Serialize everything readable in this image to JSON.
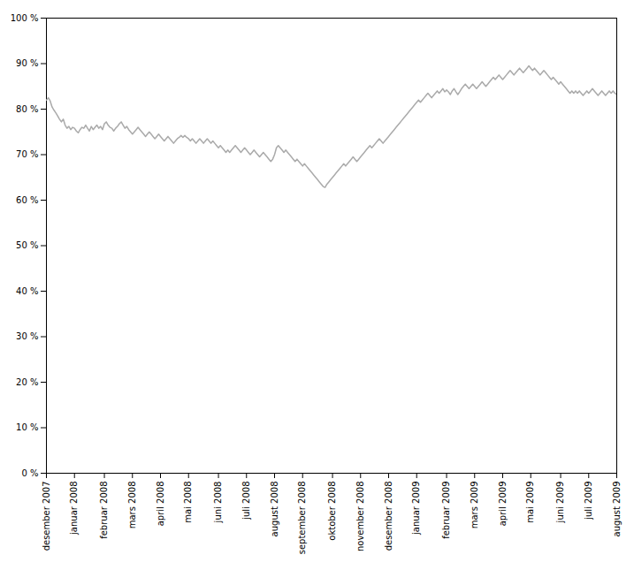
{
  "chart_data": {
    "type": "line",
    "color": "#aaaaaa",
    "grid": false,
    "ylim": [
      0,
      100
    ],
    "yticks": [
      {
        "value": 0,
        "label": "0 %"
      },
      {
        "value": 10,
        "label": "10 %"
      },
      {
        "value": 20,
        "label": "20 %"
      },
      {
        "value": 30,
        "label": "30 %"
      },
      {
        "value": 40,
        "label": "40 %"
      },
      {
        "value": 50,
        "label": "50 %"
      },
      {
        "value": 60,
        "label": "60 %"
      },
      {
        "value": 70,
        "label": "70 %"
      },
      {
        "value": 80,
        "label": "80 %"
      },
      {
        "value": 90,
        "label": "90 %"
      },
      {
        "value": 100,
        "label": "100 %"
      }
    ],
    "categories": [
      "desember 2007",
      null,
      null,
      null,
      null,
      null,
      null,
      null,
      null,
      null,
      null,
      null,
      null,
      null,
      null,
      "januar 2008",
      null,
      null,
      null,
      null,
      null,
      null,
      null,
      null,
      null,
      null,
      null,
      null,
      null,
      null,
      null,
      "februar 2008",
      null,
      null,
      null,
      null,
      null,
      null,
      null,
      null,
      null,
      null,
      null,
      null,
      null,
      null,
      "mars 2008",
      null,
      null,
      null,
      null,
      null,
      null,
      null,
      null,
      null,
      null,
      null,
      null,
      null,
      null,
      "april 2008",
      null,
      null,
      null,
      null,
      null,
      null,
      null,
      null,
      null,
      null,
      null,
      null,
      null,
      null,
      "mai 2008",
      null,
      null,
      null,
      null,
      null,
      null,
      null,
      null,
      null,
      null,
      null,
      null,
      null,
      null,
      null,
      "juni 2008",
      null,
      null,
      null,
      null,
      null,
      null,
      null,
      null,
      null,
      null,
      null,
      null,
      null,
      null,
      "juli 2008",
      null,
      null,
      null,
      null,
      null,
      null,
      null,
      null,
      null,
      null,
      null,
      null,
      null,
      null,
      "august 2008",
      null,
      null,
      null,
      null,
      null,
      null,
      null,
      null,
      null,
      null,
      null,
      null,
      null,
      null,
      "september 2008",
      null,
      null,
      null,
      null,
      null,
      null,
      null,
      null,
      null,
      null,
      null,
      null,
      null,
      null,
      null,
      "oktober 2008",
      null,
      null,
      null,
      null,
      null,
      null,
      null,
      null,
      null,
      null,
      null,
      null,
      null,
      null,
      "november 2008",
      null,
      null,
      null,
      null,
      null,
      null,
      null,
      null,
      null,
      null,
      null,
      null,
      null,
      null,
      "desember 2008",
      null,
      null,
      null,
      null,
      null,
      null,
      null,
      null,
      null,
      null,
      null,
      null,
      null,
      null,
      "januar 2009",
      null,
      null,
      null,
      null,
      null,
      null,
      null,
      null,
      null,
      null,
      null,
      null,
      null,
      null,
      null,
      "februar 2009",
      null,
      null,
      null,
      null,
      null,
      null,
      null,
      null,
      null,
      null,
      null,
      null,
      null,
      null,
      "mars 2009",
      null,
      null,
      null,
      null,
      null,
      null,
      null,
      null,
      null,
      null,
      null,
      null,
      null,
      null,
      "april 2009",
      null,
      null,
      null,
      null,
      null,
      null,
      null,
      null,
      null,
      null,
      null,
      null,
      null,
      null,
      "mai 2009",
      null,
      null,
      null,
      null,
      null,
      null,
      null,
      null,
      null,
      null,
      null,
      null,
      null,
      null,
      null,
      "juni 2009",
      null,
      null,
      null,
      null,
      null,
      null,
      null,
      null,
      null,
      null,
      null,
      null,
      null,
      null,
      "juli 2009",
      null,
      null,
      null,
      null,
      null,
      null,
      null,
      null,
      null,
      null,
      null,
      null,
      null,
      null,
      "august 2009"
    ],
    "values": [
      82.0,
      82.5,
      81.8,
      80.5,
      79.8,
      79.2,
      78.5,
      77.8,
      77.2,
      77.8,
      76.5,
      75.8,
      76.2,
      75.5,
      76.0,
      75.8,
      75.2,
      74.8,
      75.5,
      76.0,
      75.8,
      76.5,
      75.8,
      75.2,
      76.2,
      75.5,
      76.0,
      76.5,
      75.8,
      76.2,
      75.5,
      76.8,
      77.2,
      76.5,
      76.0,
      75.8,
      75.2,
      75.8,
      76.2,
      76.8,
      77.2,
      76.5,
      75.8,
      76.2,
      75.5,
      75.0,
      74.5,
      75.0,
      75.5,
      76.0,
      75.5,
      75.0,
      74.5,
      74.0,
      74.5,
      75.0,
      74.5,
      74.0,
      73.5,
      74.0,
      74.5,
      74.0,
      73.5,
      73.0,
      73.5,
      74.0,
      73.5,
      73.0,
      72.5,
      73.0,
      73.5,
      73.8,
      74.2,
      73.8,
      74.2,
      73.8,
      73.5,
      73.0,
      73.5,
      73.0,
      72.5,
      73.0,
      73.5,
      73.0,
      72.5,
      73.0,
      73.5,
      73.0,
      72.5,
      73.0,
      72.5,
      72.0,
      71.5,
      72.0,
      71.5,
      71.0,
      70.5,
      71.0,
      70.5,
      71.0,
      71.5,
      72.0,
      71.5,
      71.0,
      70.5,
      71.0,
      71.5,
      71.0,
      70.5,
      70.0,
      70.5,
      71.0,
      70.5,
      70.0,
      69.5,
      70.0,
      70.5,
      70.0,
      69.5,
      69.0,
      68.5,
      69.0,
      70.0,
      71.5,
      72.0,
      71.5,
      71.0,
      70.5,
      71.0,
      70.5,
      70.0,
      69.5,
      69.0,
      68.5,
      69.0,
      68.5,
      68.0,
      67.5,
      68.0,
      67.5,
      67.0,
      66.5,
      66.0,
      65.5,
      65.0,
      64.5,
      64.0,
      63.5,
      63.0,
      62.8,
      63.5,
      64.0,
      64.5,
      65.0,
      65.5,
      66.0,
      66.5,
      67.0,
      67.5,
      68.0,
      67.5,
      68.0,
      68.5,
      69.0,
      69.5,
      69.0,
      68.5,
      69.0,
      69.5,
      70.0,
      70.5,
      71.0,
      71.5,
      72.0,
      71.5,
      72.0,
      72.5,
      73.0,
      73.5,
      73.0,
      72.5,
      73.0,
      73.5,
      74.0,
      74.5,
      75.0,
      75.5,
      76.0,
      76.5,
      77.0,
      77.5,
      78.0,
      78.5,
      79.0,
      79.5,
      80.0,
      80.5,
      81.0,
      81.5,
      82.0,
      81.5,
      82.0,
      82.5,
      83.0,
      83.5,
      83.0,
      82.5,
      83.0,
      83.5,
      84.0,
      83.5,
      84.0,
      84.5,
      83.8,
      84.2,
      83.8,
      83.2,
      84.0,
      84.5,
      83.8,
      83.2,
      83.8,
      84.5,
      85.0,
      85.5,
      85.0,
      84.5,
      85.0,
      85.5,
      85.0,
      84.5,
      85.0,
      85.5,
      86.0,
      85.5,
      85.0,
      85.5,
      86.0,
      86.5,
      87.0,
      86.5,
      87.0,
      87.5,
      87.0,
      86.5,
      87.0,
      87.5,
      88.0,
      88.5,
      88.0,
      87.5,
      88.0,
      88.5,
      89.0,
      88.5,
      88.0,
      88.5,
      89.0,
      89.5,
      89.0,
      88.5,
      89.0,
      88.5,
      88.0,
      87.5,
      88.0,
      88.5,
      88.0,
      87.5,
      87.0,
      86.5,
      87.0,
      86.5,
      86.0,
      85.5,
      86.0,
      85.5,
      85.0,
      84.5,
      84.0,
      83.5,
      84.0,
      83.5,
      84.0,
      83.5,
      84.0,
      83.5,
      83.0,
      83.5,
      84.0,
      83.5,
      84.0,
      84.5,
      84.0,
      83.5,
      83.0,
      83.5,
      84.0,
      83.5,
      83.0,
      83.5,
      84.0,
      83.5,
      84.0,
      83.5,
      83.2
    ]
  }
}
